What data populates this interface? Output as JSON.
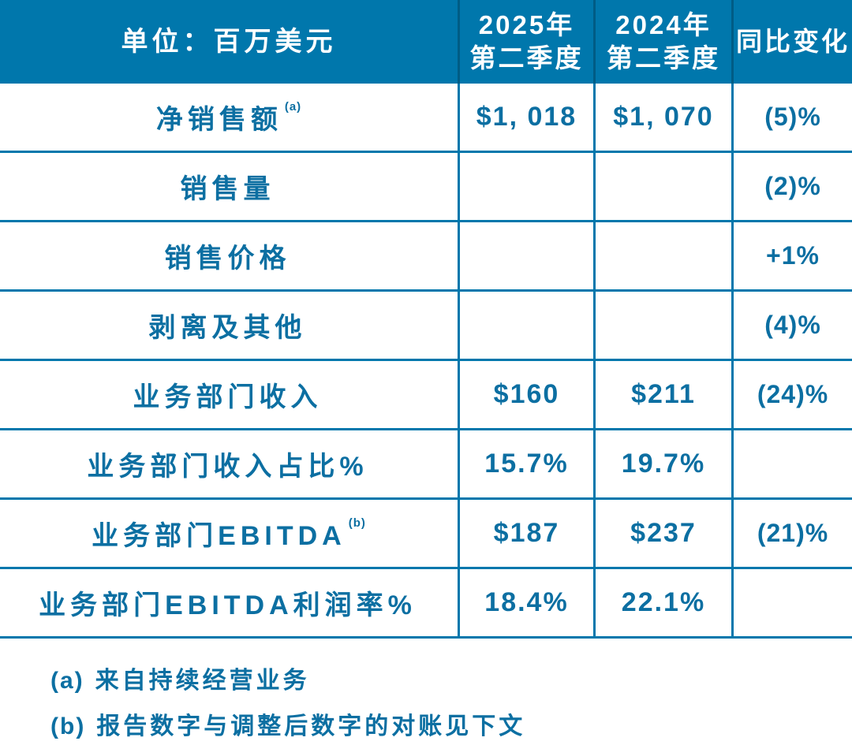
{
  "colors": {
    "page_bg": "#FFFFFF",
    "header_bg": "#0077AC",
    "header_text": "#FFFFFF",
    "header_divider": "#005C85",
    "grid_line": "#0077AC",
    "text": "#0C6FA2"
  },
  "table": {
    "header": {
      "unit": "单位：百万美元",
      "col_2025": {
        "line1": "2025年",
        "line2": "第二季度"
      },
      "col_2024": {
        "line1": "2024年",
        "line2": "第二季度"
      },
      "col_yoy": "同比变化"
    },
    "rows": [
      {
        "label": "净销售额",
        "sup": "(a)",
        "q2_2025": "$1, 018",
        "q2_2024": "$1, 070",
        "yoy": "(5)%"
      },
      {
        "label": "销售量",
        "sup": "",
        "q2_2025": "",
        "q2_2024": "",
        "yoy": "(2)%"
      },
      {
        "label": "销售价格",
        "sup": "",
        "q2_2025": "",
        "q2_2024": "",
        "yoy": "+1%"
      },
      {
        "label": "剥离及其他",
        "sup": "",
        "q2_2025": "",
        "q2_2024": "",
        "yoy": "(4)%"
      },
      {
        "label": "业务部门收入",
        "sup": "",
        "q2_2025": "$160",
        "q2_2024": "$211",
        "yoy": "(24)%"
      },
      {
        "label": "业务部门收入占比%",
        "sup": "",
        "q2_2025": "15.7%",
        "q2_2024": "19.7%",
        "yoy": ""
      },
      {
        "label": "业务部门EBITDA",
        "sup": "(b)",
        "q2_2025": "$187",
        "q2_2024": "$237",
        "yoy": "(21)%"
      },
      {
        "label": "业务部门EBITDA利润率%",
        "sup": "",
        "q2_2025": "18.4%",
        "q2_2024": "22.1%",
        "yoy": ""
      }
    ]
  },
  "footnotes": [
    {
      "marker": "(a)",
      "text": "来自持续经营业务"
    },
    {
      "marker": "(b)",
      "text": "报告数字与调整后数字的对账见下文"
    }
  ],
  "chart_data": {
    "type": "table",
    "title": "单位：百万美元",
    "columns": [
      "单位：百万美元",
      "2025年第二季度",
      "2024年第二季度",
      "同比变化"
    ],
    "rows": [
      [
        "净销售额 (a)",
        "$1,018",
        "$1,070",
        "(5)%"
      ],
      [
        "销售量",
        "",
        "",
        "(2)%"
      ],
      [
        "销售价格",
        "",
        "",
        "+1%"
      ],
      [
        "剥离及其他",
        "",
        "",
        "(4)%"
      ],
      [
        "业务部门收入",
        "$160",
        "$211",
        "(24)%"
      ],
      [
        "业务部门收入占比%",
        "15.7%",
        "19.7%",
        ""
      ],
      [
        "业务部门EBITDA (b)",
        "$187",
        "$237",
        "(21)%"
      ],
      [
        "业务部门EBITDA利润率%",
        "18.4%",
        "22.1%",
        ""
      ]
    ],
    "footnotes": [
      "(a) 来自持续经营业务",
      "(b) 报告数字与调整后数字的对账见下文"
    ]
  }
}
